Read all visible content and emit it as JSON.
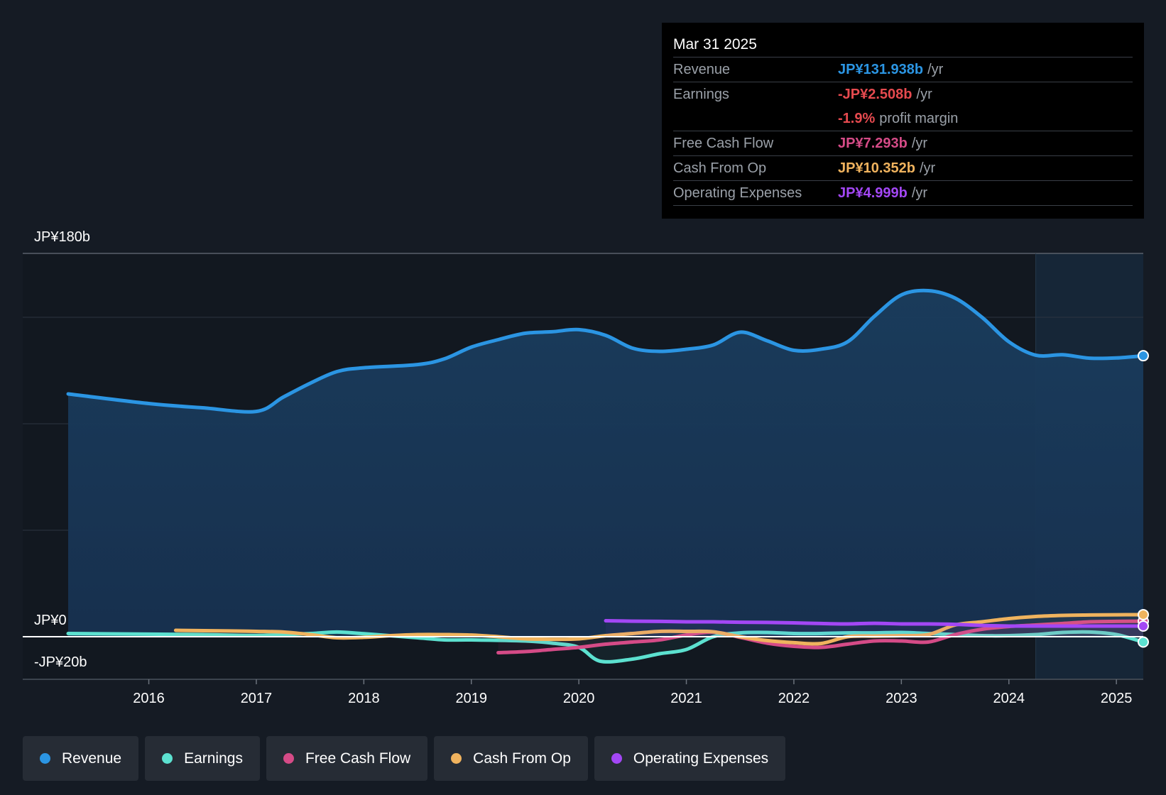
{
  "chart_data": {
    "type": "line",
    "y_labels": {
      "top": "JP¥180b",
      "zero": "JP¥0",
      "bottom": "-JP¥20b"
    },
    "ylim": [
      -20,
      180
    ],
    "xlim": [
      2015.25,
      2025.25
    ],
    "x_ticks": [
      "2016",
      "2017",
      "2018",
      "2019",
      "2020",
      "2021",
      "2022",
      "2023",
      "2024",
      "2025"
    ],
    "forecast_start": 2024.25,
    "colors": {
      "revenue": "#2b95e3",
      "earnings": "#5ce1d0",
      "free_cash_flow": "#d54b87",
      "cash_from_op": "#f0b35e",
      "operating_expenses": "#a347f5"
    },
    "series": [
      {
        "key": "revenue",
        "name": "Revenue",
        "area": true,
        "points": [
          [
            2015.25,
            114
          ],
          [
            2016.0,
            109.5
          ],
          [
            2016.5,
            107.5
          ],
          [
            2017.0,
            105.8
          ],
          [
            2017.25,
            112.5
          ],
          [
            2017.5,
            119
          ],
          [
            2017.75,
            124.5
          ],
          [
            2018.0,
            126.3
          ],
          [
            2018.5,
            127.8
          ],
          [
            2018.75,
            130.5
          ],
          [
            2019.0,
            136
          ],
          [
            2019.25,
            139.5
          ],
          [
            2019.5,
            142.5
          ],
          [
            2019.75,
            143.2
          ],
          [
            2020.0,
            144.2
          ],
          [
            2020.25,
            141.5
          ],
          [
            2020.5,
            135.5
          ],
          [
            2020.75,
            134
          ],
          [
            2021.0,
            135
          ],
          [
            2021.25,
            137
          ],
          [
            2021.5,
            143
          ],
          [
            2021.75,
            139
          ],
          [
            2022.0,
            134.5
          ],
          [
            2022.25,
            135
          ],
          [
            2022.5,
            138.5
          ],
          [
            2022.75,
            150.5
          ],
          [
            2023.0,
            160.5
          ],
          [
            2023.25,
            162.5
          ],
          [
            2023.5,
            159
          ],
          [
            2023.75,
            150
          ],
          [
            2024.0,
            138.5
          ],
          [
            2024.25,
            132.2
          ],
          [
            2024.5,
            132.4
          ],
          [
            2024.75,
            130.8
          ],
          [
            2025.0,
            130.9
          ],
          [
            2025.25,
            131.938
          ]
        ]
      },
      {
        "key": "earnings",
        "name": "Earnings",
        "points": [
          [
            2015.25,
            1.5
          ],
          [
            2016.0,
            1.2
          ],
          [
            2016.5,
            1
          ],
          [
            2017.0,
            0.6
          ],
          [
            2017.5,
            1.5
          ],
          [
            2017.75,
            2.2
          ],
          [
            2018.0,
            1.4
          ],
          [
            2018.5,
            -0.5
          ],
          [
            2018.75,
            -1.5
          ],
          [
            2019.0,
            -1.5
          ],
          [
            2019.5,
            -2
          ],
          [
            2019.75,
            -3
          ],
          [
            2020.0,
            -5
          ],
          [
            2020.2,
            -11.5
          ],
          [
            2020.5,
            -10.5
          ],
          [
            2020.75,
            -8
          ],
          [
            2021.0,
            -6
          ],
          [
            2021.25,
            0
          ],
          [
            2021.5,
            1.8
          ],
          [
            2021.75,
            2
          ],
          [
            2022.0,
            1.5
          ],
          [
            2022.25,
            1.5
          ],
          [
            2022.5,
            1.8
          ],
          [
            2022.75,
            1.8
          ],
          [
            2023.0,
            2
          ],
          [
            2023.25,
            1.5
          ],
          [
            2023.5,
            1
          ],
          [
            2023.75,
            0.5
          ],
          [
            2024.0,
            0.5
          ],
          [
            2024.25,
            1
          ],
          [
            2024.5,
            2
          ],
          [
            2024.75,
            2.2
          ],
          [
            2025.0,
            1
          ],
          [
            2025.25,
            -2.508
          ]
        ]
      },
      {
        "key": "free_cash_flow",
        "name": "Free Cash Flow",
        "points": [
          [
            2019.25,
            -7.5
          ],
          [
            2019.5,
            -7
          ],
          [
            2019.75,
            -6
          ],
          [
            2020.0,
            -5
          ],
          [
            2020.25,
            -3.5
          ],
          [
            2020.5,
            -2.5
          ],
          [
            2020.75,
            -1.5
          ],
          [
            2021.0,
            0.8
          ],
          [
            2021.25,
            2.2
          ],
          [
            2021.5,
            -0.3
          ],
          [
            2021.75,
            -3
          ],
          [
            2022.0,
            -4.5
          ],
          [
            2022.25,
            -5
          ],
          [
            2022.5,
            -3.5
          ],
          [
            2022.75,
            -2
          ],
          [
            2023.0,
            -2
          ],
          [
            2023.25,
            -2.5
          ],
          [
            2023.5,
            1
          ],
          [
            2023.75,
            3.5
          ],
          [
            2024.0,
            4.8
          ],
          [
            2024.25,
            5.5
          ],
          [
            2024.5,
            6.2
          ],
          [
            2024.75,
            7
          ],
          [
            2025.0,
            7.2
          ],
          [
            2025.25,
            7.293
          ]
        ]
      },
      {
        "key": "cash_from_op",
        "name": "Cash From Op",
        "points": [
          [
            2016.25,
            3
          ],
          [
            2016.75,
            2.7
          ],
          [
            2017.0,
            2.5
          ],
          [
            2017.25,
            2.2
          ],
          [
            2017.5,
            1
          ],
          [
            2017.75,
            -0.5
          ],
          [
            2018.0,
            -0.3
          ],
          [
            2018.25,
            0.5
          ],
          [
            2018.5,
            1
          ],
          [
            2018.75,
            1
          ],
          [
            2019.0,
            0.8
          ],
          [
            2019.25,
            0
          ],
          [
            2019.5,
            -1
          ],
          [
            2019.75,
            -1.2
          ],
          [
            2020.0,
            -1
          ],
          [
            2020.25,
            0.5
          ],
          [
            2020.5,
            1.5
          ],
          [
            2020.75,
            2.5
          ],
          [
            2021.0,
            2.5
          ],
          [
            2021.25,
            2.3
          ],
          [
            2021.5,
            0
          ],
          [
            2021.75,
            -1.8
          ],
          [
            2022.0,
            -2.8
          ],
          [
            2022.25,
            -3.2
          ],
          [
            2022.5,
            0
          ],
          [
            2022.75,
            0.3
          ],
          [
            2023.0,
            0.5
          ],
          [
            2023.25,
            1
          ],
          [
            2023.5,
            5.5
          ],
          [
            2023.75,
            7
          ],
          [
            2024.0,
            8.5
          ],
          [
            2024.25,
            9.5
          ],
          [
            2024.5,
            10
          ],
          [
            2024.75,
            10.2
          ],
          [
            2025.0,
            10.3
          ],
          [
            2025.25,
            10.352
          ]
        ]
      },
      {
        "key": "operating_expenses",
        "name": "Operating Expenses",
        "points": [
          [
            2020.25,
            7.5
          ],
          [
            2020.5,
            7.3
          ],
          [
            2020.75,
            7.2
          ],
          [
            2021.0,
            7
          ],
          [
            2021.25,
            7
          ],
          [
            2021.5,
            6.8
          ],
          [
            2021.75,
            6.7
          ],
          [
            2022.0,
            6.5
          ],
          [
            2022.25,
            6.2
          ],
          [
            2022.5,
            6
          ],
          [
            2022.75,
            6.3
          ],
          [
            2023.0,
            6
          ],
          [
            2023.25,
            6
          ],
          [
            2023.5,
            5.8
          ],
          [
            2023.75,
            5.3
          ],
          [
            2024.0,
            5
          ],
          [
            2024.25,
            5
          ],
          [
            2024.5,
            5
          ],
          [
            2024.75,
            5
          ],
          [
            2025.0,
            5
          ],
          [
            2025.25,
            4.999
          ]
        ]
      }
    ]
  },
  "tooltip": {
    "date": "Mar 31 2025",
    "rows": [
      {
        "label": "Revenue",
        "value": "JP¥131.938b",
        "unit": "/yr",
        "color": "#2b95e3"
      },
      {
        "label": "Earnings",
        "value": "-JP¥2.508b",
        "unit": "/yr",
        "color": "#e64a4f"
      },
      {
        "label": "",
        "value": "-1.9%",
        "unit": "profit margin",
        "color": "#e64a4f"
      },
      {
        "label": "Free Cash Flow",
        "value": "JP¥7.293b",
        "unit": "/yr",
        "color": "#d54b87"
      },
      {
        "label": "Cash From Op",
        "value": "JP¥10.352b",
        "unit": "/yr",
        "color": "#f0b35e"
      },
      {
        "label": "Operating Expenses",
        "value": "JP¥4.999b",
        "unit": "/yr",
        "color": "#a347f5"
      }
    ]
  },
  "legend": [
    {
      "label": "Revenue",
      "color": "#2b95e3"
    },
    {
      "label": "Earnings",
      "color": "#5ce1d0"
    },
    {
      "label": "Free Cash Flow",
      "color": "#d54b87"
    },
    {
      "label": "Cash From Op",
      "color": "#f0b35e"
    },
    {
      "label": "Operating Expenses",
      "color": "#a347f5"
    }
  ]
}
